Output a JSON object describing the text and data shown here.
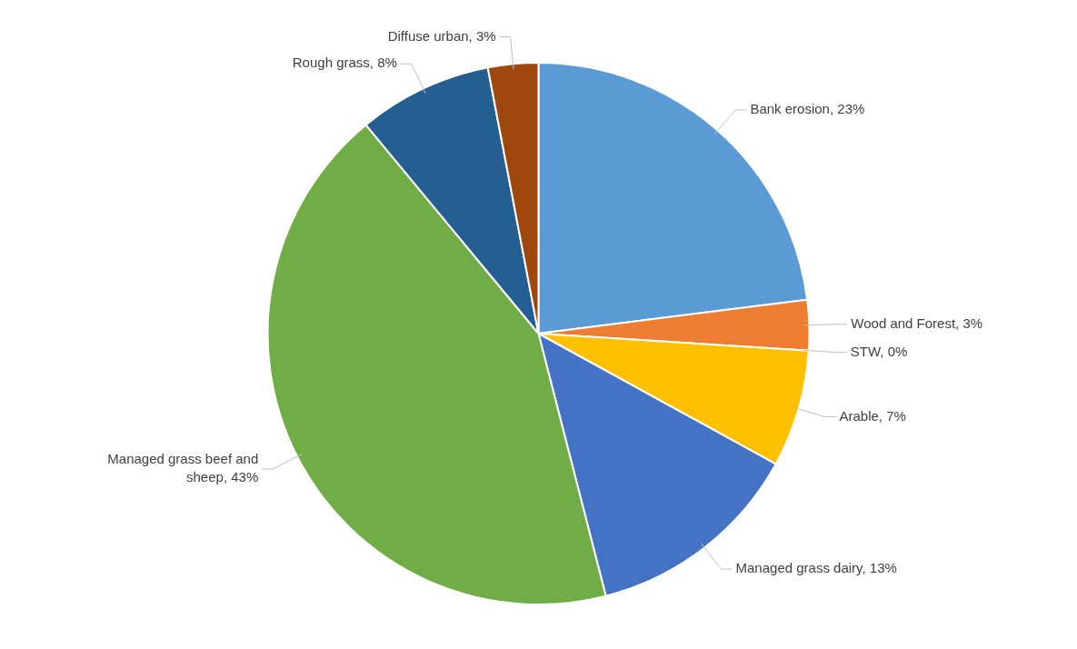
{
  "chart_data": {
    "type": "pie",
    "categories": [
      "Bank erosion",
      "Wood and Forest",
      "STW",
      "Arable",
      "Managed grass dairy",
      "Managed grass beef and sheep",
      "Rough grass",
      "Diffuse urban"
    ],
    "values": [
      23,
      3,
      0,
      7,
      13,
      43,
      8,
      3
    ],
    "colors": [
      "#5b9bd5",
      "#ed7d31",
      "#a5a5a5",
      "#ffc000",
      "#4472c4",
      "#70ad47",
      "#255e91",
      "#9e480e"
    ],
    "value_labels": [
      "23%",
      "3%",
      "0%",
      "7%",
      "13%",
      "43%",
      "8%",
      "3%"
    ]
  }
}
